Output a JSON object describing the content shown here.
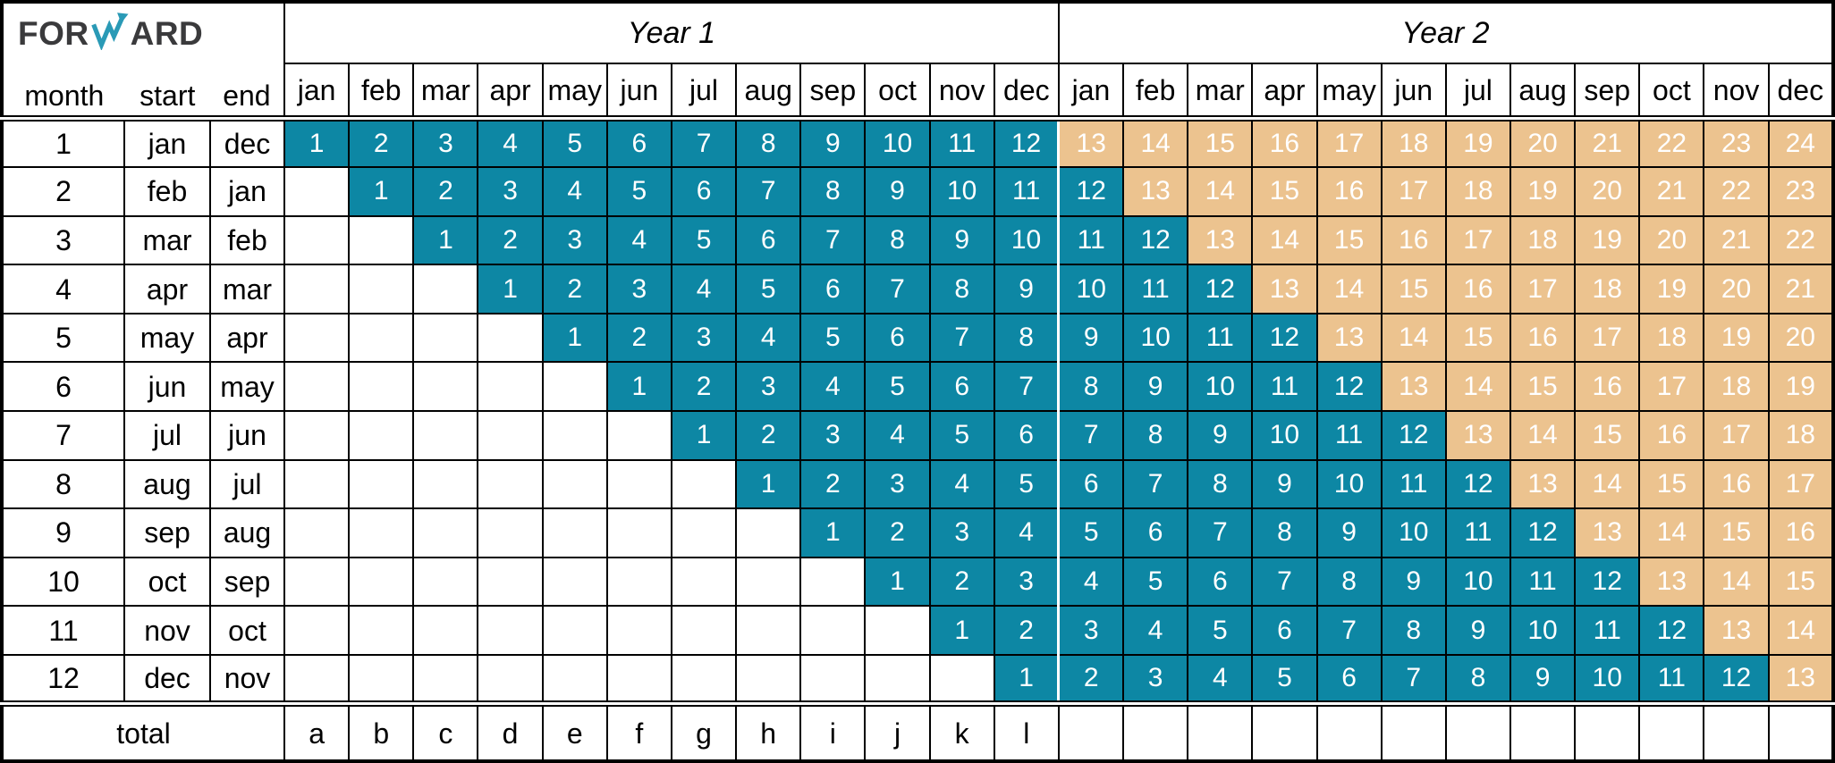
{
  "logo": {
    "text_pre": "FOR",
    "text_post": "ARD",
    "arrow_icon": "trend-arrow",
    "arrow_color": "#2a9ab6",
    "text_color": "#3a3a3c"
  },
  "header": {
    "year1_label": "Year 1",
    "year2_label": "Year 2",
    "left_columns": [
      "month",
      "start",
      "end"
    ],
    "months": [
      "jan",
      "feb",
      "mar",
      "apr",
      "may",
      "jun",
      "jul",
      "aug",
      "sep",
      "oct",
      "nov",
      "dec"
    ]
  },
  "colors": {
    "in_year_cell": "#0d87a4",
    "beyond_year_cell": "#ecc38f",
    "cell_text": "#ffffff",
    "grid_line": "#000000",
    "year_divider_line": "#ffffff"
  },
  "rows": [
    {
      "month": "1",
      "start": "jan",
      "end": "dec",
      "cells": [
        1,
        2,
        3,
        4,
        5,
        6,
        7,
        8,
        9,
        10,
        11,
        12,
        13,
        14,
        15,
        16,
        17,
        18,
        19,
        20,
        21,
        22,
        23,
        24
      ]
    },
    {
      "month": "2",
      "start": "feb",
      "end": "jan",
      "cells": [
        null,
        1,
        2,
        3,
        4,
        5,
        6,
        7,
        8,
        9,
        10,
        11,
        12,
        13,
        14,
        15,
        16,
        17,
        18,
        19,
        20,
        21,
        22,
        23
      ]
    },
    {
      "month": "3",
      "start": "mar",
      "end": "feb",
      "cells": [
        null,
        null,
        1,
        2,
        3,
        4,
        5,
        6,
        7,
        8,
        9,
        10,
        11,
        12,
        13,
        14,
        15,
        16,
        17,
        18,
        19,
        20,
        21,
        22
      ]
    },
    {
      "month": "4",
      "start": "apr",
      "end": "mar",
      "cells": [
        null,
        null,
        null,
        1,
        2,
        3,
        4,
        5,
        6,
        7,
        8,
        9,
        10,
        11,
        12,
        13,
        14,
        15,
        16,
        17,
        18,
        19,
        20,
        21
      ]
    },
    {
      "month": "5",
      "start": "may",
      "end": "apr",
      "cells": [
        null,
        null,
        null,
        null,
        1,
        2,
        3,
        4,
        5,
        6,
        7,
        8,
        9,
        10,
        11,
        12,
        13,
        14,
        15,
        16,
        17,
        18,
        19,
        20
      ]
    },
    {
      "month": "6",
      "start": "jun",
      "end": "may",
      "cells": [
        null,
        null,
        null,
        null,
        null,
        1,
        2,
        3,
        4,
        5,
        6,
        7,
        8,
        9,
        10,
        11,
        12,
        13,
        14,
        15,
        16,
        17,
        18,
        19
      ]
    },
    {
      "month": "7",
      "start": "jul",
      "end": "jun",
      "cells": [
        null,
        null,
        null,
        null,
        null,
        null,
        1,
        2,
        3,
        4,
        5,
        6,
        7,
        8,
        9,
        10,
        11,
        12,
        13,
        14,
        15,
        16,
        17,
        18
      ]
    },
    {
      "month": "8",
      "start": "aug",
      "end": "jul",
      "cells": [
        null,
        null,
        null,
        null,
        null,
        null,
        null,
        1,
        2,
        3,
        4,
        5,
        6,
        7,
        8,
        9,
        10,
        11,
        12,
        13,
        14,
        15,
        16,
        17
      ]
    },
    {
      "month": "9",
      "start": "sep",
      "end": "aug",
      "cells": [
        null,
        null,
        null,
        null,
        null,
        null,
        null,
        null,
        1,
        2,
        3,
        4,
        5,
        6,
        7,
        8,
        9,
        10,
        11,
        12,
        13,
        14,
        15,
        16
      ]
    },
    {
      "month": "10",
      "start": "oct",
      "end": "sep",
      "cells": [
        null,
        null,
        null,
        null,
        null,
        null,
        null,
        null,
        null,
        1,
        2,
        3,
        4,
        5,
        6,
        7,
        8,
        9,
        10,
        11,
        12,
        13,
        14,
        15
      ]
    },
    {
      "month": "11",
      "start": "nov",
      "end": "oct",
      "cells": [
        null,
        null,
        null,
        null,
        null,
        null,
        null,
        null,
        null,
        null,
        1,
        2,
        3,
        4,
        5,
        6,
        7,
        8,
        9,
        10,
        11,
        12,
        13,
        14
      ]
    },
    {
      "month": "12",
      "start": "dec",
      "end": "nov",
      "cells": [
        null,
        null,
        null,
        null,
        null,
        null,
        null,
        null,
        null,
        null,
        null,
        1,
        2,
        3,
        4,
        5,
        6,
        7,
        8,
        9,
        10,
        11,
        12,
        13
      ]
    }
  ],
  "total_row": {
    "label": "total",
    "letters": [
      "a",
      "b",
      "c",
      "d",
      "e",
      "f",
      "g",
      "h",
      "i",
      "j",
      "k",
      "l"
    ]
  }
}
